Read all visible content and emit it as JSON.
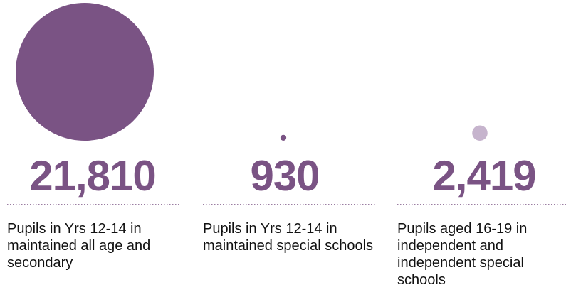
{
  "chart_data": {
    "type": "bubble",
    "categories": [
      "Pupils in Yrs 12-14 in maintained all age and secondary",
      "Pupils in Yrs 12-14 in maintained special schools",
      "Pupils aged 16-19 in independent and independent special schools"
    ],
    "values": [
      21810,
      930,
      2419
    ],
    "value_labels": [
      "21,810",
      "930",
      "2,419"
    ],
    "colors": [
      "#7a5384",
      "#7a5384",
      "#c6b4cd"
    ]
  }
}
